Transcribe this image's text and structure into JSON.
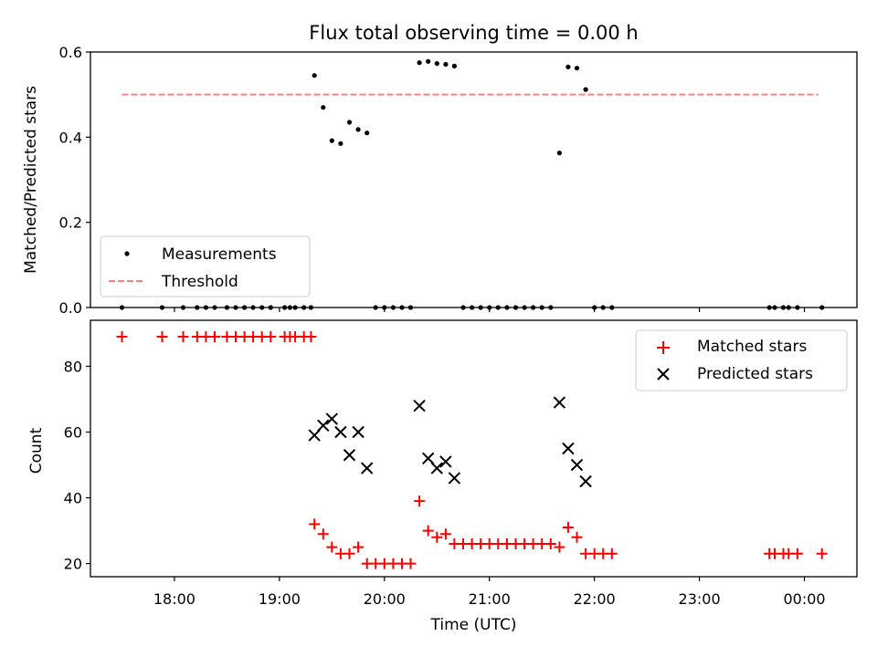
{
  "figure": {
    "title": "Flux total observing time = 0.00 h"
  },
  "chart_data": [
    {
      "type": "scatter",
      "panel": "top",
      "title": "Flux total observing time = 0.00 h",
      "xlabel": "",
      "ylabel": "Matched/Predicted stars",
      "ylim": [
        0,
        0.6
      ],
      "yticks": [
        0.0,
        0.2,
        0.4,
        0.6
      ],
      "ytick_labels": [
        "0.0",
        "0.2",
        "0.4",
        "0.6"
      ],
      "xlim": [
        "17:12",
        "00:30"
      ],
      "legend_position": "lower-left",
      "series": [
        {
          "name": "Measurements",
          "marker": "dot",
          "color": "#000000",
          "points": [
            [
              "17:30",
              0.0
            ],
            [
              "17:53",
              0.0
            ],
            [
              "18:05",
              0.0
            ],
            [
              "18:13",
              0.0
            ],
            [
              "18:18",
              0.0
            ],
            [
              "18:23",
              0.0
            ],
            [
              "18:30",
              0.0
            ],
            [
              "18:35",
              0.0
            ],
            [
              "18:40",
              0.0
            ],
            [
              "18:45",
              0.0
            ],
            [
              "18:50",
              0.0
            ],
            [
              "18:55",
              0.0
            ],
            [
              "19:03",
              0.0
            ],
            [
              "19:06",
              0.0
            ],
            [
              "19:09",
              0.0
            ],
            [
              "19:14",
              0.0
            ],
            [
              "19:18",
              0.0
            ],
            [
              "19:20",
              0.545
            ],
            [
              "19:25",
              0.47
            ],
            [
              "19:30",
              0.392
            ],
            [
              "19:35",
              0.385
            ],
            [
              "19:40",
              0.435
            ],
            [
              "19:45",
              0.418
            ],
            [
              "19:50",
              0.41
            ],
            [
              "19:55",
              0.0
            ],
            [
              "20:00",
              0.0
            ],
            [
              "20:05",
              0.0
            ],
            [
              "20:10",
              0.0
            ],
            [
              "20:15",
              0.0
            ],
            [
              "20:20",
              0.575
            ],
            [
              "20:25",
              0.578
            ],
            [
              "20:30",
              0.573
            ],
            [
              "20:35",
              0.571
            ],
            [
              "20:40",
              0.567
            ],
            [
              "20:45",
              0.0
            ],
            [
              "20:50",
              0.0
            ],
            [
              "20:55",
              0.0
            ],
            [
              "21:00",
              0.0
            ],
            [
              "21:05",
              0.0
            ],
            [
              "21:10",
              0.0
            ],
            [
              "21:15",
              0.0
            ],
            [
              "21:20",
              0.0
            ],
            [
              "21:25",
              0.0
            ],
            [
              "21:30",
              0.0
            ],
            [
              "21:35",
              0.0
            ],
            [
              "21:40",
              0.363
            ],
            [
              "21:45",
              0.565
            ],
            [
              "21:50",
              0.562
            ],
            [
              "21:55",
              0.512
            ],
            [
              "22:00",
              0.0
            ],
            [
              "22:05",
              0.0
            ],
            [
              "22:10",
              0.0
            ],
            [
              "23:40",
              0.0
            ],
            [
              "23:43",
              0.0
            ],
            [
              "23:48",
              0.0
            ],
            [
              "23:51",
              0.0
            ],
            [
              "23:56",
              0.0
            ],
            [
              "00:10",
              0.0
            ]
          ]
        },
        {
          "name": "Threshold",
          "marker": "dashed-line",
          "color": "#ff7f7f",
          "x": [
            "17:30",
            "00:08"
          ],
          "y": [
            0.5,
            0.5
          ]
        }
      ]
    },
    {
      "type": "scatter",
      "panel": "bottom",
      "xlabel": "Time (UTC)",
      "ylabel": "Count",
      "ylim": [
        16,
        94
      ],
      "yticks": [
        20,
        40,
        60,
        80
      ],
      "ytick_labels": [
        "20",
        "40",
        "60",
        "80"
      ],
      "xlim": [
        "17:12",
        "00:30"
      ],
      "xticks": [
        "18:00",
        "19:00",
        "20:00",
        "21:00",
        "22:00",
        "23:00",
        "00:00"
      ],
      "legend_position": "top-right",
      "series": [
        {
          "name": "Matched stars",
          "marker": "plus",
          "color": "#ff0000",
          "points": [
            [
              "17:30",
              89
            ],
            [
              "17:53",
              89
            ],
            [
              "18:05",
              89
            ],
            [
              "18:13",
              89
            ],
            [
              "18:18",
              89
            ],
            [
              "18:23",
              89
            ],
            [
              "18:30",
              89
            ],
            [
              "18:35",
              89
            ],
            [
              "18:40",
              89
            ],
            [
              "18:45",
              89
            ],
            [
              "18:50",
              89
            ],
            [
              "18:55",
              89
            ],
            [
              "19:03",
              89
            ],
            [
              "19:06",
              89
            ],
            [
              "19:09",
              89
            ],
            [
              "19:14",
              89
            ],
            [
              "19:18",
              89
            ],
            [
              "19:20",
              32
            ],
            [
              "19:25",
              29
            ],
            [
              "19:30",
              25
            ],
            [
              "19:35",
              23
            ],
            [
              "19:40",
              23
            ],
            [
              "19:45",
              25
            ],
            [
              "19:50",
              20
            ],
            [
              "19:55",
              20
            ],
            [
              "20:00",
              20
            ],
            [
              "20:05",
              20
            ],
            [
              "20:10",
              20
            ],
            [
              "20:15",
              20
            ],
            [
              "20:20",
              39
            ],
            [
              "20:25",
              30
            ],
            [
              "20:30",
              28
            ],
            [
              "20:35",
              29
            ],
            [
              "20:40",
              26
            ],
            [
              "20:45",
              26
            ],
            [
              "20:50",
              26
            ],
            [
              "20:55",
              26
            ],
            [
              "21:00",
              26
            ],
            [
              "21:05",
              26
            ],
            [
              "21:10",
              26
            ],
            [
              "21:15",
              26
            ],
            [
              "21:20",
              26
            ],
            [
              "21:25",
              26
            ],
            [
              "21:30",
              26
            ],
            [
              "21:35",
              26
            ],
            [
              "21:40",
              25
            ],
            [
              "21:45",
              31
            ],
            [
              "21:50",
              28
            ],
            [
              "21:55",
              23
            ],
            [
              "22:00",
              23
            ],
            [
              "22:05",
              23
            ],
            [
              "22:10",
              23
            ],
            [
              "23:40",
              23
            ],
            [
              "23:43",
              23
            ],
            [
              "23:48",
              23
            ],
            [
              "23:51",
              23
            ],
            [
              "23:56",
              23
            ],
            [
              "00:10",
              23
            ]
          ]
        },
        {
          "name": "Predicted stars",
          "marker": "x",
          "color": "#000000",
          "points": [
            [
              "19:20",
              59
            ],
            [
              "19:25",
              62
            ],
            [
              "19:30",
              64
            ],
            [
              "19:35",
              60
            ],
            [
              "19:40",
              53
            ],
            [
              "19:45",
              60
            ],
            [
              "19:50",
              49
            ],
            [
              "20:20",
              68
            ],
            [
              "20:25",
              52
            ],
            [
              "20:30",
              49
            ],
            [
              "20:35",
              51
            ],
            [
              "20:40",
              46
            ],
            [
              "21:40",
              69
            ],
            [
              "21:45",
              55
            ],
            [
              "21:50",
              50
            ],
            [
              "21:55",
              45
            ]
          ]
        }
      ]
    }
  ]
}
